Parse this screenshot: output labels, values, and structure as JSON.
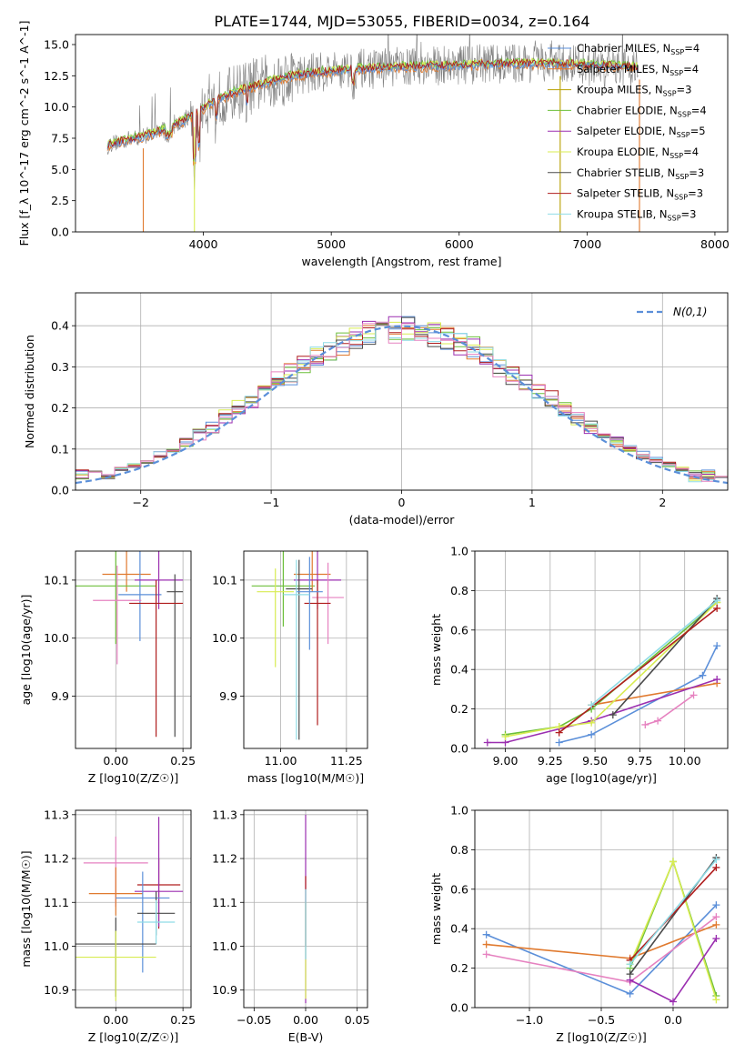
{
  "figure": {
    "title": "PLATE=1744, MJD=53055, FIBERID=0034, z=0.164"
  },
  "colors": {
    "Chabrier MILES": "#5b8fd9",
    "Salpeter MILES": "#e07a2f",
    "Kroupa MILES": "#b8a000",
    "Chabrier ELODIE": "#6cbf3a",
    "Salpeter ELODIE": "#9b2fb0",
    "Kroupa ELODIE": "#d8ec52",
    "Chabrier STELIB": "#4a4a4a",
    "Salpeter STELIB": "#b01e1e",
    "Kroupa STELIB": "#8fdce6",
    "pink": "#e682c0",
    "data": "#808080",
    "normal": "#5b8fd9"
  },
  "chart_data": [
    {
      "id": "spectrum",
      "type": "line",
      "xlabel": "wavelength [Angstrom, rest frame]",
      "ylabel": "Flux [f_λ 10^-17 erg cm^-2 s^-1 A^-1]",
      "xlim": [
        3000,
        8100
      ],
      "ylim": [
        0,
        15.8
      ],
      "xticks": [
        4000,
        5000,
        6000,
        7000,
        8000
      ],
      "yticks": [
        0.0,
        2.5,
        5.0,
        7.5,
        10.0,
        12.5,
        15.0
      ],
      "legend": [
        {
          "label": "Chabrier MILES, N_SSP=4"
        },
        {
          "label": "Salpeter MILES, N_SSP=4"
        },
        {
          "label": "Kroupa MILES, N_SSP=3"
        },
        {
          "label": "Chabrier ELODIE, N_SSP=4"
        },
        {
          "label": "Salpeter ELODIE, N_SSP=5"
        },
        {
          "label": "Kroupa ELODIE, N_SSP=4"
        },
        {
          "label": "Chabrier STELIB, N_SSP=3"
        },
        {
          "label": "Salpeter STELIB, N_SSP=3"
        },
        {
          "label": "Kroupa STELIB, N_SSP=3"
        }
      ],
      "continuum": {
        "x": [
          3250,
          3500,
          3700,
          3900,
          4100,
          4300,
          4500,
          4700,
          4900,
          5100,
          5300,
          5500,
          5800,
          6100,
          6400,
          6700,
          7000,
          7400
        ],
        "y": [
          7.0,
          7.6,
          8.2,
          9.2,
          10.6,
          11.4,
          12.0,
          12.5,
          12.8,
          13.0,
          13.1,
          13.2,
          13.3,
          13.4,
          13.5,
          13.5,
          13.4,
          13.2
        ]
      }
    },
    {
      "id": "residuals",
      "type": "line",
      "xlabel": "(data-model)/error",
      "ylabel": "Normed distribution",
      "xlim": [
        -2.5,
        2.5
      ],
      "ylim": [
        0,
        0.48
      ],
      "xticks": [
        -2,
        -1,
        0,
        1,
        2
      ],
      "yticks": [
        0.0,
        0.1,
        0.2,
        0.3,
        0.4
      ],
      "legend_label": "N(0,1)"
    },
    {
      "id": "age-vs-Z",
      "type": "scatter",
      "xlabel": "Z [log10(Z/Z☉)]",
      "ylabel": "age  [log10(age/yr)]",
      "xlim": [
        -0.15,
        0.28
      ],
      "ylim": [
        9.81,
        10.15
      ],
      "xticks": [
        0.0,
        0.25
      ],
      "yticks": [
        9.9,
        10.0,
        10.1
      ],
      "points": [
        {
          "x": 0.04,
          "y": 10.11,
          "xerr": 0.09,
          "yerr": [
            0.03,
            0.06
          ],
          "series": "Salpeter MILES"
        },
        {
          "x": 0.0,
          "y": 10.09,
          "xerr": 0.15,
          "yerr": [
            0.1,
            0.06
          ],
          "series": "Chabrier ELODIE"
        },
        {
          "x": 0.09,
          "y": 10.075,
          "xerr": 0.08,
          "yerr": [
            0.08,
            0.1
          ],
          "series": "Chabrier MILES"
        },
        {
          "x": 0.16,
          "y": 10.1,
          "xerr": 0.09,
          "yerr": [
            0.05,
            0.05
          ],
          "series": "Salpeter ELODIE"
        },
        {
          "x": 0.22,
          "y": 10.08,
          "xerr": 0.03,
          "yerr": [
            0.25,
            0.03
          ],
          "series": "Chabrier STELIB"
        },
        {
          "x": 0.15,
          "y": 10.06,
          "xerr": 0.1,
          "yerr": [
            0.23,
            0.04
          ],
          "series": "Salpeter STELIB"
        },
        {
          "x": 0.005,
          "y": 10.065,
          "xerr": 0.09,
          "yerr": [
            0.11,
            0.06
          ],
          "series": "pink"
        }
      ]
    },
    {
      "id": "age-vs-mass",
      "type": "scatter",
      "xlabel": "mass [log10(M/M☉)]",
      "ylabel": "",
      "xlim": [
        10.86,
        11.33
      ],
      "ylim": [
        9.81,
        10.15
      ],
      "xticks": [
        11.0,
        11.25
      ],
      "yticks": [
        9.9,
        10.0,
        10.1
      ],
      "points": [
        {
          "x": 11.01,
          "y": 10.09,
          "xerr": 0.12,
          "yerr": [
            0.07,
            0.06
          ],
          "series": "Chabrier ELODIE"
        },
        {
          "x": 11.12,
          "y": 10.11,
          "xerr": 0.07,
          "yerr": [
            0.03,
            0.06
          ],
          "series": "Salpeter MILES"
        },
        {
          "x": 11.14,
          "y": 10.1,
          "xerr": 0.09,
          "yerr": [
            0.05,
            0.05
          ],
          "series": "Salpeter ELODIE"
        },
        {
          "x": 11.07,
          "y": 10.085,
          "xerr": 0.05,
          "yerr": [
            0.26,
            0.05
          ],
          "series": "Chabrier STELIB"
        },
        {
          "x": 11.18,
          "y": 10.07,
          "xerr": 0.06,
          "yerr": [
            0.08,
            0.06
          ],
          "series": "pink"
        },
        {
          "x": 11.14,
          "y": 10.06,
          "xerr": 0.05,
          "yerr": [
            0.21,
            0.04
          ],
          "series": "Salpeter STELIB"
        },
        {
          "x": 11.11,
          "y": 10.08,
          "xerr": 0.05,
          "yerr": [
            0.1,
            0.06
          ],
          "series": "Chabrier MILES"
        },
        {
          "x": 11.06,
          "y": 10.075,
          "xerr": 0.05,
          "yerr": [
            0.25,
            0.06
          ],
          "series": "Kroupa STELIB"
        },
        {
          "x": 10.98,
          "y": 10.08,
          "xerr": 0.07,
          "yerr": [
            0.13,
            0.04
          ],
          "series": "Kroupa ELODIE"
        }
      ]
    },
    {
      "id": "weight-vs-age",
      "type": "line",
      "xlabel": "age  [log10(age/yr)]",
      "ylabel": "mass weight",
      "xlim": [
        8.83,
        10.24
      ],
      "ylim": [
        0,
        1.0
      ],
      "xticks": [
        9.0,
        9.25,
        9.5,
        9.75,
        10.0
      ],
      "yticks": [
        0.0,
        0.2,
        0.4,
        0.6,
        0.8,
        1.0
      ],
      "series": [
        {
          "name": "Chabrier MILES",
          "x": [
            9.3,
            9.48,
            10.1,
            10.18
          ],
          "y": [
            0.03,
            0.07,
            0.37,
            0.52
          ]
        },
        {
          "name": "Salpeter MILES",
          "x": [
            9.48,
            10.18
          ],
          "y": [
            0.22,
            0.33
          ]
        },
        {
          "name": "Chabrier ELODIE",
          "x": [
            9.0,
            9.3,
            9.48,
            10.18
          ],
          "y": [
            0.07,
            0.11,
            0.2,
            0.74
          ]
        },
        {
          "name": "Salpeter ELODIE",
          "x": [
            8.9,
            9.0,
            9.48,
            10.18
          ],
          "y": [
            0.03,
            0.03,
            0.14,
            0.35
          ]
        },
        {
          "name": "Kroupa ELODIE",
          "x": [
            9.0,
            9.3,
            9.48,
            10.18
          ],
          "y": [
            0.06,
            0.11,
            0.13,
            0.74
          ]
        },
        {
          "name": "Chabrier STELIB",
          "x": [
            9.6,
            10.18
          ],
          "y": [
            0.17,
            0.76
          ]
        },
        {
          "name": "Salpeter STELIB",
          "x": [
            9.3,
            10.18
          ],
          "y": [
            0.08,
            0.71
          ]
        },
        {
          "name": "Kroupa STELIB",
          "x": [
            9.48,
            10.18
          ],
          "y": [
            0.22,
            0.75
          ]
        },
        {
          "name": "pink",
          "x": [
            9.78,
            9.85,
            10.05
          ],
          "y": [
            0.12,
            0.14,
            0.27
          ]
        }
      ]
    },
    {
      "id": "mass-vs-Z",
      "type": "scatter",
      "xlabel": "Z [log10(Z/Z☉)]",
      "ylabel": "mass [log10(M/M☉)]",
      "xlim": [
        -0.15,
        0.28
      ],
      "ylim": [
        10.86,
        11.31
      ],
      "xticks": [
        0.0,
        0.25
      ],
      "yticks": [
        10.9,
        11.0,
        11.1,
        11.2,
        11.3
      ],
      "points": [
        {
          "x": 0.0,
          "y": 11.19,
          "xerr": 0.12,
          "yerr": [
            0.1,
            0.06
          ],
          "series": "pink"
        },
        {
          "x": 0.0,
          "y": 11.12,
          "xerr": 0.1,
          "yerr": [
            0.05,
            0.06
          ],
          "series": "Salpeter MILES"
        },
        {
          "x": 0.16,
          "y": 11.14,
          "xerr": 0.08,
          "yerr": [
            0.1,
            0.06
          ],
          "series": "Salpeter STELIB"
        },
        {
          "x": 0.16,
          "y": 11.125,
          "xerr": 0.09,
          "yerr": [
            0.08,
            0.17
          ],
          "series": "Salpeter ELODIE"
        },
        {
          "x": 0.1,
          "y": 11.11,
          "xerr": 0.1,
          "yerr": [
            0.17,
            0.06
          ],
          "series": "Chabrier MILES"
        },
        {
          "x": 0.15,
          "y": 11.075,
          "xerr": 0.07,
          "yerr": [
            0.05,
            0.05
          ],
          "series": "Chabrier STELIB"
        },
        {
          "x": 0.15,
          "y": 11.055,
          "xerr": 0.07,
          "yerr": [
            0.05,
            0.05
          ],
          "series": "Kroupa STELIB"
        },
        {
          "x": 0.0,
          "y": 11.005,
          "xerr": 0.15,
          "yerr": [
            0.12,
            0.06
          ],
          "series": "Chabrier STELIB"
        },
        {
          "x": 0.0,
          "y": 10.975,
          "xerr": 0.15,
          "yerr": [
            0.1,
            0.06
          ],
          "series": "Kroupa ELODIE"
        }
      ]
    },
    {
      "id": "mass-vs-EBV",
      "type": "scatter",
      "xlabel": "E(B-V)",
      "ylabel": "",
      "xlim": [
        -0.06,
        0.06
      ],
      "ylim": [
        10.86,
        11.31
      ],
      "xticks": [
        -0.05,
        0.0,
        0.05
      ],
      "yticks": [
        10.9,
        11.0,
        11.1,
        11.2,
        11.3
      ],
      "points": [
        {
          "x": 0.0,
          "y": 11.1,
          "xerr": 0.0,
          "yerr": [
            0.23,
            0.2
          ],
          "series": "Salpeter ELODIE"
        },
        {
          "x": 0.0,
          "y": 11.1,
          "xerr": 0.0,
          "yerr": [
            0.1,
            0.06
          ],
          "series": "Salpeter STELIB"
        },
        {
          "x": 0.0,
          "y": 11.0,
          "xerr": 0.0,
          "yerr": [
            0.12,
            0.1
          ],
          "series": "Kroupa ELODIE"
        },
        {
          "x": 0.0,
          "y": 11.05,
          "xerr": 0.0,
          "yerr": [
            0.08,
            0.08
          ],
          "series": "Kroupa STELIB"
        }
      ]
    },
    {
      "id": "weight-vs-Z",
      "type": "line",
      "xlabel": "Z [log10(Z/Z☉)]",
      "ylabel": "mass weight",
      "xlim": [
        -1.38,
        0.38
      ],
      "ylim": [
        0,
        1.0
      ],
      "xticks": [
        -1.0,
        -0.5,
        0.0
      ],
      "yticks": [
        0.0,
        0.2,
        0.4,
        0.6,
        0.8,
        1.0
      ],
      "series": [
        {
          "name": "Chabrier MILES",
          "x": [
            -1.3,
            -0.3,
            0.3
          ],
          "y": [
            0.37,
            0.07,
            0.52
          ]
        },
        {
          "name": "Salpeter MILES",
          "x": [
            -1.3,
            -0.3,
            0.3
          ],
          "y": [
            0.32,
            0.25,
            0.42
          ]
        },
        {
          "name": "pink",
          "x": [
            -1.3,
            -0.3,
            0.3
          ],
          "y": [
            0.27,
            0.13,
            0.46
          ]
        },
        {
          "name": "Chabrier ELODIE",
          "x": [
            -0.3,
            0.0,
            0.3
          ],
          "y": [
            0.2,
            0.74,
            0.06
          ]
        },
        {
          "name": "Kroupa ELODIE",
          "x": [
            -0.3,
            0.0,
            0.3
          ],
          "y": [
            0.22,
            0.74,
            0.04
          ]
        },
        {
          "name": "Salpeter ELODIE",
          "x": [
            -0.3,
            0.0,
            0.3
          ],
          "y": [
            0.14,
            0.03,
            0.35
          ]
        },
        {
          "name": "Chabrier STELIB",
          "x": [
            -0.3,
            0.3
          ],
          "y": [
            0.17,
            0.76
          ]
        },
        {
          "name": "Salpeter STELIB",
          "x": [
            -0.3,
            0.3
          ],
          "y": [
            0.24,
            0.71
          ]
        },
        {
          "name": "Kroupa STELIB",
          "x": [
            -0.3,
            0.3
          ],
          "y": [
            0.22,
            0.75
          ]
        }
      ]
    }
  ]
}
